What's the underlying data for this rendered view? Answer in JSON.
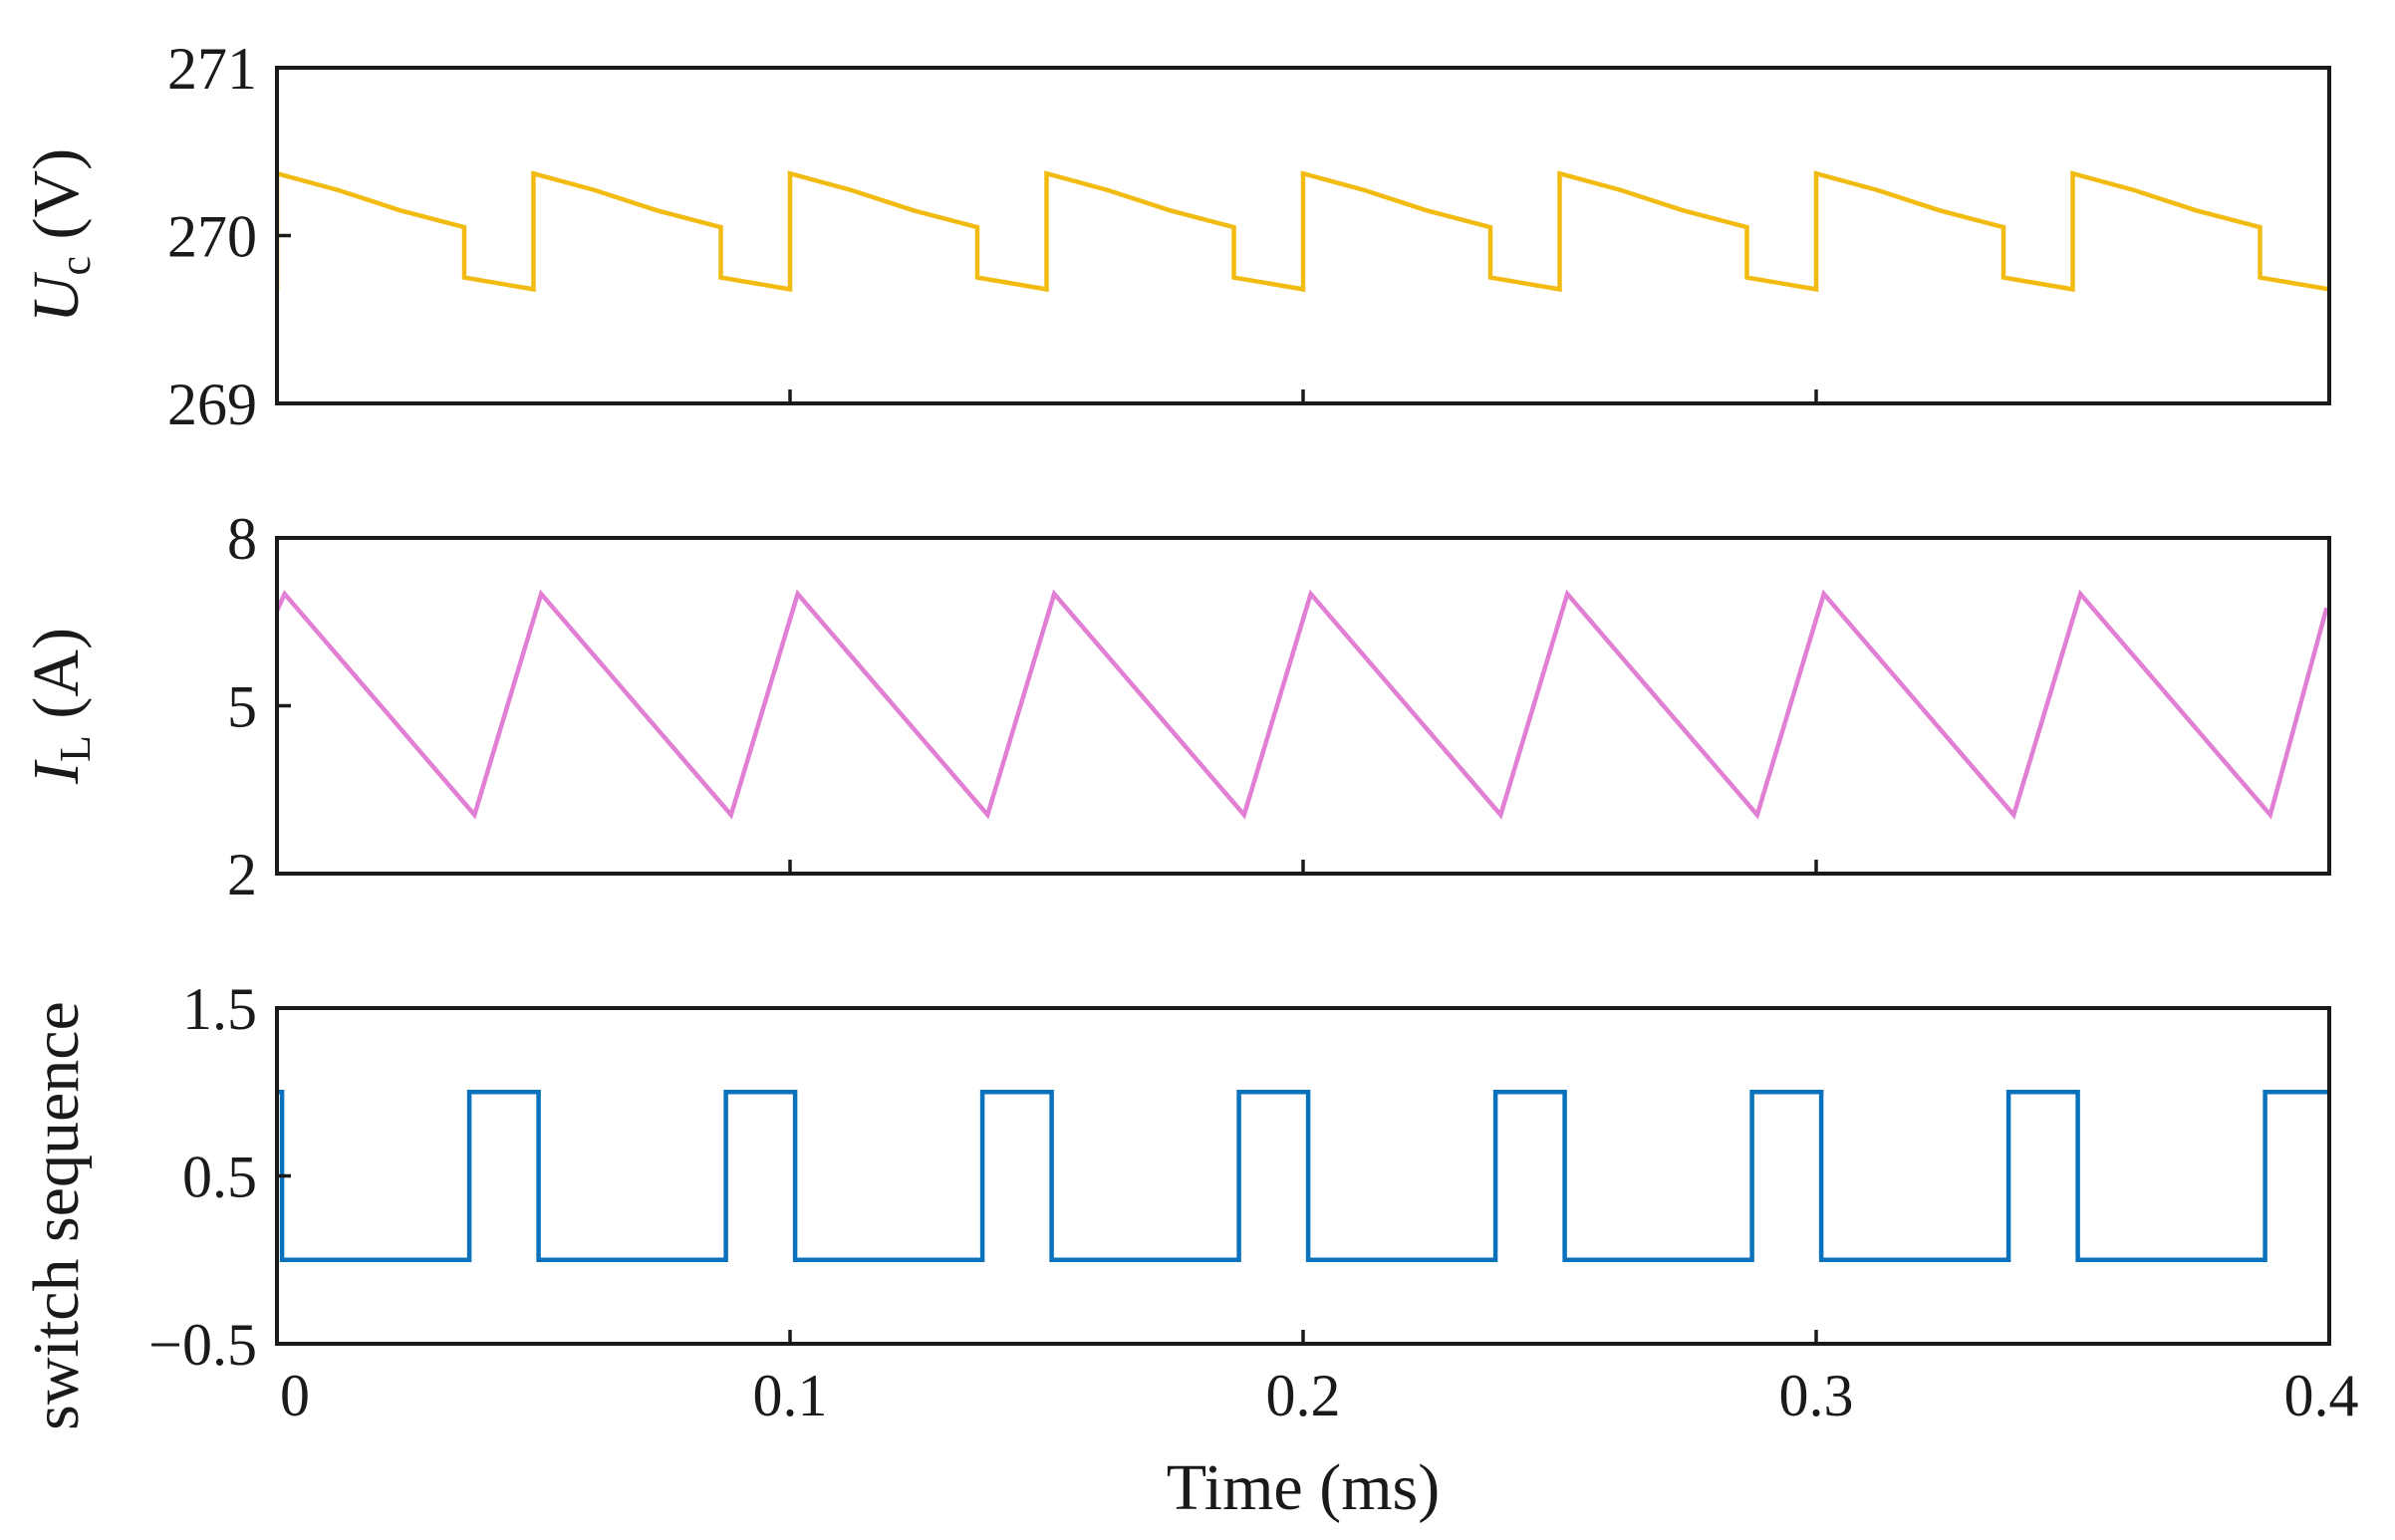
{
  "chart_data": [
    {
      "type": "line",
      "panel": "top",
      "ylabel_main": "U",
      "ylabel_sub": "c",
      "ylabel_unit": " (V)",
      "xlim": [
        0,
        0.4
      ],
      "ylim": [
        269,
        271
      ],
      "yticks": [
        269,
        270,
        271
      ],
      "ytick_labels": [
        "269",
        "270",
        "271"
      ],
      "series": [
        {
          "name": "Uc",
          "color": "#F2BB12",
          "period_ms": 0.05,
          "on_duration_ms": 0.0135,
          "samples": [
            [
              0,
              269.67
            ],
            [
              0,
              270.37
            ],
            [
              0.012,
              270.27
            ],
            [
              0.024,
              270.15
            ],
            [
              0.0365,
              270.05
            ],
            [
              0.0365,
              269.75
            ],
            [
              0.05,
              269.68
            ],
            [
              0.05,
              270.37
            ],
            [
              0.062,
              270.27
            ],
            [
              0.074,
              270.15
            ],
            [
              0.0865,
              270.05
            ],
            [
              0.0865,
              269.75
            ],
            [
              0.1,
              269.68
            ],
            [
              0.1,
              270.37
            ],
            [
              0.112,
              270.27
            ],
            [
              0.124,
              270.15
            ],
            [
              0.1365,
              270.05
            ],
            [
              0.1365,
              269.75
            ],
            [
              0.15,
              269.68
            ],
            [
              0.15,
              270.37
            ],
            [
              0.162,
              270.27
            ],
            [
              0.174,
              270.15
            ],
            [
              0.1865,
              270.05
            ],
            [
              0.1865,
              269.75
            ],
            [
              0.2,
              269.68
            ],
            [
              0.2,
              270.37
            ],
            [
              0.212,
              270.27
            ],
            [
              0.224,
              270.15
            ],
            [
              0.2365,
              270.05
            ],
            [
              0.2365,
              269.75
            ],
            [
              0.25,
              269.68
            ],
            [
              0.25,
              270.37
            ],
            [
              0.262,
              270.27
            ],
            [
              0.274,
              270.15
            ],
            [
              0.2865,
              270.05
            ],
            [
              0.2865,
              269.75
            ],
            [
              0.3,
              269.68
            ],
            [
              0.3,
              270.37
            ],
            [
              0.312,
              270.27
            ],
            [
              0.324,
              270.15
            ],
            [
              0.3365,
              270.05
            ],
            [
              0.3365,
              269.75
            ],
            [
              0.35,
              269.68
            ],
            [
              0.35,
              270.37
            ],
            [
              0.362,
              270.27
            ],
            [
              0.374,
              270.15
            ],
            [
              0.3865,
              270.05
            ],
            [
              0.3865,
              269.75
            ],
            [
              0.4,
              269.68
            ]
          ]
        }
      ]
    },
    {
      "type": "line",
      "panel": "middle",
      "ylabel_main": "I",
      "ylabel_sub": "L",
      "ylabel_unit": " (A)",
      "xlim": [
        0,
        0.4
      ],
      "ylim": [
        2,
        8
      ],
      "yticks": [
        2,
        5,
        8
      ],
      "ytick_labels": [
        "2",
        "5",
        "8"
      ],
      "series": [
        {
          "name": "IL",
          "color": "#E07FD4",
          "samples": [
            [
              -0.0015,
              6.4
            ],
            [
              0.0015,
              7.0
            ],
            [
              0.0385,
              3.05
            ],
            [
              0.0515,
              7.0
            ],
            [
              0.0885,
              3.05
            ],
            [
              0.1015,
              7.0
            ],
            [
              0.1385,
              3.05
            ],
            [
              0.1515,
              7.0
            ],
            [
              0.1885,
              3.05
            ],
            [
              0.2015,
              7.0
            ],
            [
              0.2385,
              3.05
            ],
            [
              0.2515,
              7.0
            ],
            [
              0.2885,
              3.05
            ],
            [
              0.3015,
              7.0
            ],
            [
              0.3385,
              3.05
            ],
            [
              0.3515,
              7.0
            ],
            [
              0.3885,
              3.05
            ],
            [
              0.3995,
              6.75
            ]
          ]
        }
      ]
    },
    {
      "type": "line",
      "panel": "bottom",
      "ylabel": "switch sequence",
      "xlabel": "Time (ms)",
      "xlim": [
        0,
        0.4
      ],
      "ylim": [
        -0.5,
        1.5
      ],
      "yticks": [
        -0.5,
        0.5,
        1.5
      ],
      "ytick_labels": [
        "−0.5",
        "0.5",
        "1.5"
      ],
      "xticks": [
        0,
        0.1,
        0.2,
        0.3,
        0.4
      ],
      "xtick_labels": [
        "0",
        "0.1",
        "0.2",
        "0.3",
        "0.4"
      ],
      "series": [
        {
          "name": "switch sequence",
          "color": "#0A72BD",
          "samples": [
            [
              -0.002,
              1
            ],
            [
              0.001,
              1
            ],
            [
              0.001,
              0
            ],
            [
              0.0375,
              0
            ],
            [
              0.0375,
              1
            ],
            [
              0.051,
              1
            ],
            [
              0.051,
              0
            ],
            [
              0.0875,
              0
            ],
            [
              0.0875,
              1
            ],
            [
              0.101,
              1
            ],
            [
              0.101,
              0
            ],
            [
              0.1375,
              0
            ],
            [
              0.1375,
              1
            ],
            [
              0.151,
              1
            ],
            [
              0.151,
              0
            ],
            [
              0.1875,
              0
            ],
            [
              0.1875,
              1
            ],
            [
              0.201,
              1
            ],
            [
              0.201,
              0
            ],
            [
              0.2375,
              0
            ],
            [
              0.2375,
              1
            ],
            [
              0.251,
              1
            ],
            [
              0.251,
              0
            ],
            [
              0.2875,
              0
            ],
            [
              0.2875,
              1
            ],
            [
              0.301,
              1
            ],
            [
              0.301,
              0
            ],
            [
              0.3375,
              0
            ],
            [
              0.3375,
              1
            ],
            [
              0.351,
              1
            ],
            [
              0.351,
              0
            ],
            [
              0.3875,
              0
            ],
            [
              0.3875,
              1
            ],
            [
              0.4,
              1
            ]
          ]
        }
      ]
    }
  ]
}
